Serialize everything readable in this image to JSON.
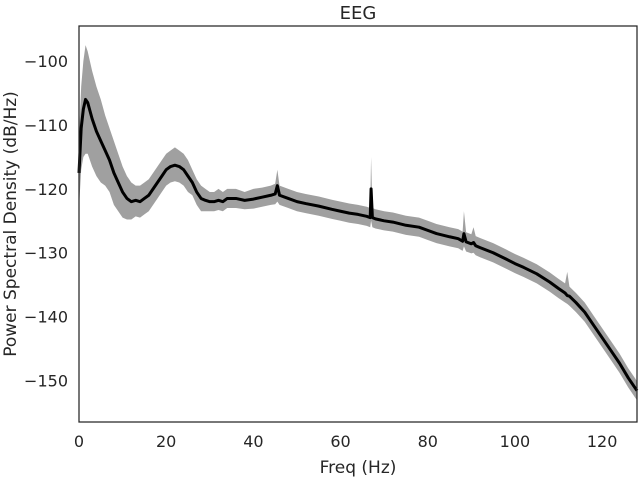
{
  "chart_data": {
    "type": "line",
    "title": "EEG",
    "xlabel": "Freq (Hz)",
    "ylabel": "Power Spectral Density (dB/Hz)",
    "xlim": [
      0,
      128
    ],
    "ylim": [
      -156.5,
      -94.5
    ],
    "xticks": [
      0,
      20,
      40,
      60,
      80,
      100,
      120
    ],
    "yticks": [
      -100,
      -110,
      -120,
      -130,
      -140,
      -150
    ],
    "xtick_labels": [
      "0",
      "20",
      "40",
      "60",
      "80",
      "100",
      "120"
    ],
    "ytick_labels": [
      "−100",
      "−110",
      "−120",
      "−130",
      "−140",
      "−150"
    ],
    "grid": false,
    "series": [
      {
        "role": "mean",
        "color": "#000000",
        "x": [
          0,
          0.5,
          1,
          1.5,
          2,
          3,
          4,
          5,
          6,
          7,
          8,
          9,
          10,
          11,
          12,
          13,
          14,
          15,
          16,
          17,
          18,
          19,
          20,
          21,
          22,
          23,
          24,
          25,
          26,
          27,
          28,
          29,
          30,
          31,
          32,
          33,
          34,
          35,
          36,
          38,
          40,
          42,
          44,
          45,
          45.5,
          46,
          48,
          50,
          52,
          55,
          58,
          60,
          62,
          64,
          66,
          66.8,
          67,
          67.3,
          68,
          70,
          72,
          75,
          78,
          80,
          82,
          85,
          87,
          88,
          88.3,
          88.8,
          90,
          90.5,
          91,
          92,
          95,
          98,
          100,
          102,
          105,
          108,
          110,
          111.5,
          112,
          112.5,
          114,
          116,
          118,
          120,
          122,
          124,
          126,
          128
        ],
        "y": [
          -117.5,
          -110.5,
          -107.5,
          -106,
          -106.5,
          -109,
          -111,
          -112.5,
          -114,
          -115.5,
          -117.5,
          -119,
          -120.5,
          -121.5,
          -122,
          -121.8,
          -122,
          -121.5,
          -121,
          -120,
          -119,
          -118,
          -117,
          -116.5,
          -116.3,
          -116.5,
          -117,
          -118,
          -119,
          -120.5,
          -121.5,
          -121.8,
          -122,
          -122,
          -121.8,
          -122,
          -121.5,
          -121.5,
          -121.5,
          -121.8,
          -121.6,
          -121.3,
          -121,
          -120.8,
          -119.5,
          -121,
          -121.5,
          -122,
          -122.3,
          -122.7,
          -123.2,
          -123.5,
          -123.8,
          -124,
          -124.3,
          -124.5,
          -120,
          -124.5,
          -124.7,
          -125,
          -125.2,
          -125.7,
          -126,
          -126.5,
          -127,
          -127.5,
          -127.8,
          -128.2,
          -127,
          -128.3,
          -128.6,
          -128.4,
          -128.9,
          -129.2,
          -130,
          -131,
          -131.7,
          -132.3,
          -133.3,
          -134.6,
          -135.6,
          -136.3,
          -136.7,
          -136.8,
          -137.8,
          -139.3,
          -141.3,
          -143.3,
          -145.3,
          -147.3,
          -149.6,
          -151.6
        ]
      },
      {
        "role": "spread-upper",
        "color": "#a0a0a0",
        "x": [
          0,
          0.5,
          1,
          1.5,
          2,
          3,
          4,
          5,
          6,
          7,
          8,
          9,
          10,
          11,
          12,
          13,
          14,
          15,
          16,
          17,
          18,
          19,
          20,
          21,
          22,
          23,
          24,
          25,
          26,
          27,
          28,
          29,
          30,
          31,
          32,
          33,
          34,
          35,
          36,
          38,
          40,
          42,
          44,
          45,
          45.5,
          46,
          48,
          50,
          52,
          55,
          58,
          60,
          62,
          64,
          66,
          66.8,
          67,
          67.3,
          68,
          70,
          72,
          75,
          78,
          80,
          82,
          85,
          87,
          88,
          88.3,
          88.8,
          90,
          90.5,
          91,
          92,
          95,
          98,
          100,
          102,
          105,
          108,
          110,
          111.5,
          112,
          112.5,
          114,
          116,
          118,
          120,
          122,
          124,
          126,
          128
        ],
        "y": [
          -112,
          -104,
          -100,
          -97.5,
          -98.5,
          -101.5,
          -104,
          -106,
          -108.5,
          -110.5,
          -112.5,
          -114.5,
          -116.5,
          -118,
          -119,
          -119.5,
          -119.5,
          -119,
          -118.5,
          -117.5,
          -116.5,
          -115.5,
          -114.5,
          -114,
          -113.5,
          -114,
          -114.5,
          -115.5,
          -117,
          -118.5,
          -119.5,
          -120,
          -120.5,
          -120.5,
          -120,
          -120.5,
          -120,
          -120,
          -120,
          -120.5,
          -120,
          -119.8,
          -119.5,
          -119.2,
          -117,
          -119.5,
          -120,
          -120.5,
          -120.8,
          -121.2,
          -121.7,
          -122,
          -122.3,
          -122.5,
          -122.8,
          -123,
          -115,
          -123,
          -123.2,
          -123.5,
          -123.7,
          -124.2,
          -124.5,
          -125,
          -125.5,
          -126,
          -126.3,
          -126.7,
          -123.5,
          -126.8,
          -127.1,
          -126,
          -127.4,
          -127.7,
          -128.5,
          -129.5,
          -130.2,
          -130.8,
          -131.8,
          -133.1,
          -134.1,
          -134.8,
          -133,
          -135.3,
          -136.3,
          -137.8,
          -139.8,
          -141.8,
          -143.8,
          -145.8,
          -148.1,
          -150.1
        ]
      },
      {
        "role": "spread-lower",
        "color": "#a0a0a0",
        "x": [
          0,
          0.5,
          1,
          1.5,
          2,
          3,
          4,
          5,
          6,
          7,
          8,
          9,
          10,
          11,
          12,
          13,
          14,
          15,
          16,
          17,
          18,
          19,
          20,
          21,
          22,
          23,
          24,
          25,
          26,
          27,
          28,
          29,
          30,
          31,
          32,
          33,
          34,
          35,
          36,
          38,
          40,
          42,
          44,
          45,
          45.5,
          46,
          48,
          50,
          52,
          55,
          58,
          60,
          62,
          64,
          66,
          66.8,
          67,
          67.3,
          68,
          70,
          72,
          75,
          78,
          80,
          82,
          85,
          87,
          88,
          88.3,
          88.8,
          90,
          90.5,
          91,
          92,
          95,
          98,
          100,
          102,
          105,
          108,
          110,
          111.5,
          112,
          112.5,
          114,
          116,
          118,
          120,
          122,
          124,
          126,
          128
        ],
        "y": [
          -123,
          -117,
          -115,
          -114.5,
          -114.5,
          -116.5,
          -118,
          -119,
          -119.5,
          -120.5,
          -122.5,
          -123.5,
          -124.5,
          -124.8,
          -124.8,
          -124.3,
          -124.5,
          -124,
          -123.5,
          -122.5,
          -121.5,
          -120.5,
          -119.5,
          -119,
          -118.8,
          -119,
          -119.5,
          -120.5,
          -121,
          -122.5,
          -123.5,
          -123.5,
          -123.5,
          -123.5,
          -123.3,
          -123.5,
          -123,
          -123,
          -123,
          -123.2,
          -123.1,
          -122.8,
          -122.5,
          -122.4,
          -122,
          -122.5,
          -123,
          -123.5,
          -123.8,
          -124.2,
          -124.7,
          -125,
          -125.3,
          -125.5,
          -125.8,
          -126,
          -125,
          -126,
          -126.2,
          -126.5,
          -126.7,
          -127.2,
          -127.5,
          -128,
          -128.5,
          -129,
          -129.3,
          -129.7,
          -129,
          -129.8,
          -130.1,
          -130,
          -130.4,
          -130.7,
          -131.5,
          -132.5,
          -133.2,
          -133.8,
          -134.8,
          -136.1,
          -137.1,
          -137.8,
          -138,
          -138.3,
          -139.3,
          -140.8,
          -142.8,
          -144.8,
          -146.8,
          -148.8,
          -151.1,
          -153.1
        ]
      }
    ]
  }
}
